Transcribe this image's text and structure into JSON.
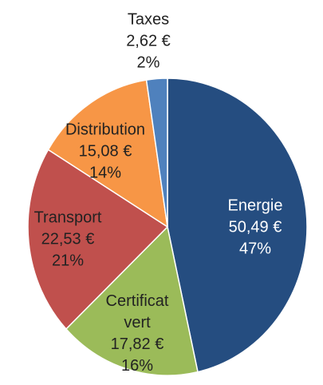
{
  "chart_data": {
    "type": "pie",
    "categories": [
      "Energie",
      "Certificat vert",
      "Transport",
      "Distribution",
      "Taxes"
    ],
    "values": [
      50.49,
      17.82,
      22.53,
      15.08,
      2.62
    ],
    "value_labels": [
      "50,49 €",
      "17,82 €",
      "22,53 €",
      "15,08 €",
      "2,62 €"
    ],
    "percents": [
      47,
      16,
      21,
      14,
      2
    ],
    "percent_labels": [
      "47%",
      "16%",
      "21%",
      "14%",
      "2%"
    ],
    "colors": [
      "#254d80",
      "#9bbb59",
      "#c0504d",
      "#f79646",
      "#4f81bd"
    ]
  }
}
